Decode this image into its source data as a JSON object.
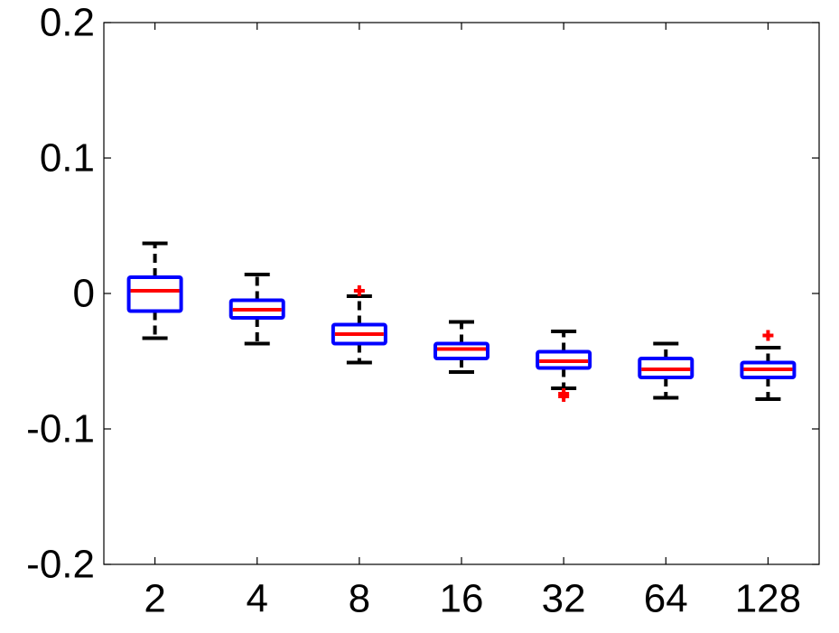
{
  "chart_data": {
    "type": "box",
    "title": "",
    "xlabel": "",
    "ylabel": "",
    "ylim": [
      -0.2,
      0.2
    ],
    "yticks": [
      -0.2,
      -0.1,
      0,
      0.1,
      0.2
    ],
    "ytick_labels": [
      "-0.2",
      "-0.1",
      "0",
      "0.1",
      "0.2"
    ],
    "categories": [
      "2",
      "4",
      "8",
      "16",
      "32",
      "64",
      "128"
    ],
    "grid": false,
    "boxes": [
      {
        "category": "2",
        "whisker_low": -0.033,
        "q1": -0.013,
        "median": 0.002,
        "q3": 0.012,
        "whisker_high": 0.037,
        "outliers": []
      },
      {
        "category": "4",
        "whisker_low": -0.037,
        "q1": -0.018,
        "median": -0.012,
        "q3": -0.005,
        "whisker_high": 0.014,
        "outliers": []
      },
      {
        "category": "8",
        "whisker_low": -0.051,
        "q1": -0.037,
        "median": -0.03,
        "q3": -0.023,
        "whisker_high": -0.002,
        "outliers": [
          0.002
        ]
      },
      {
        "category": "16",
        "whisker_low": -0.058,
        "q1": -0.048,
        "median": -0.041,
        "q3": -0.037,
        "whisker_high": -0.021,
        "outliers": []
      },
      {
        "category": "32",
        "whisker_low": -0.07,
        "q1": -0.055,
        "median": -0.05,
        "q3": -0.043,
        "whisker_high": -0.028,
        "outliers": [
          -0.074,
          -0.076
        ]
      },
      {
        "category": "64",
        "whisker_low": -0.077,
        "q1": -0.062,
        "median": -0.056,
        "q3": -0.048,
        "whisker_high": -0.037,
        "outliers": []
      },
      {
        "category": "128",
        "whisker_low": -0.078,
        "q1": -0.062,
        "median": -0.056,
        "q3": -0.051,
        "whisker_high": -0.04,
        "outliers": [
          -0.031
        ]
      }
    ],
    "colors": {
      "box": "#0000ff",
      "median": "#ff0000",
      "whisker": "#000000",
      "outlier": "#ff0000",
      "axes": "#000000"
    }
  }
}
